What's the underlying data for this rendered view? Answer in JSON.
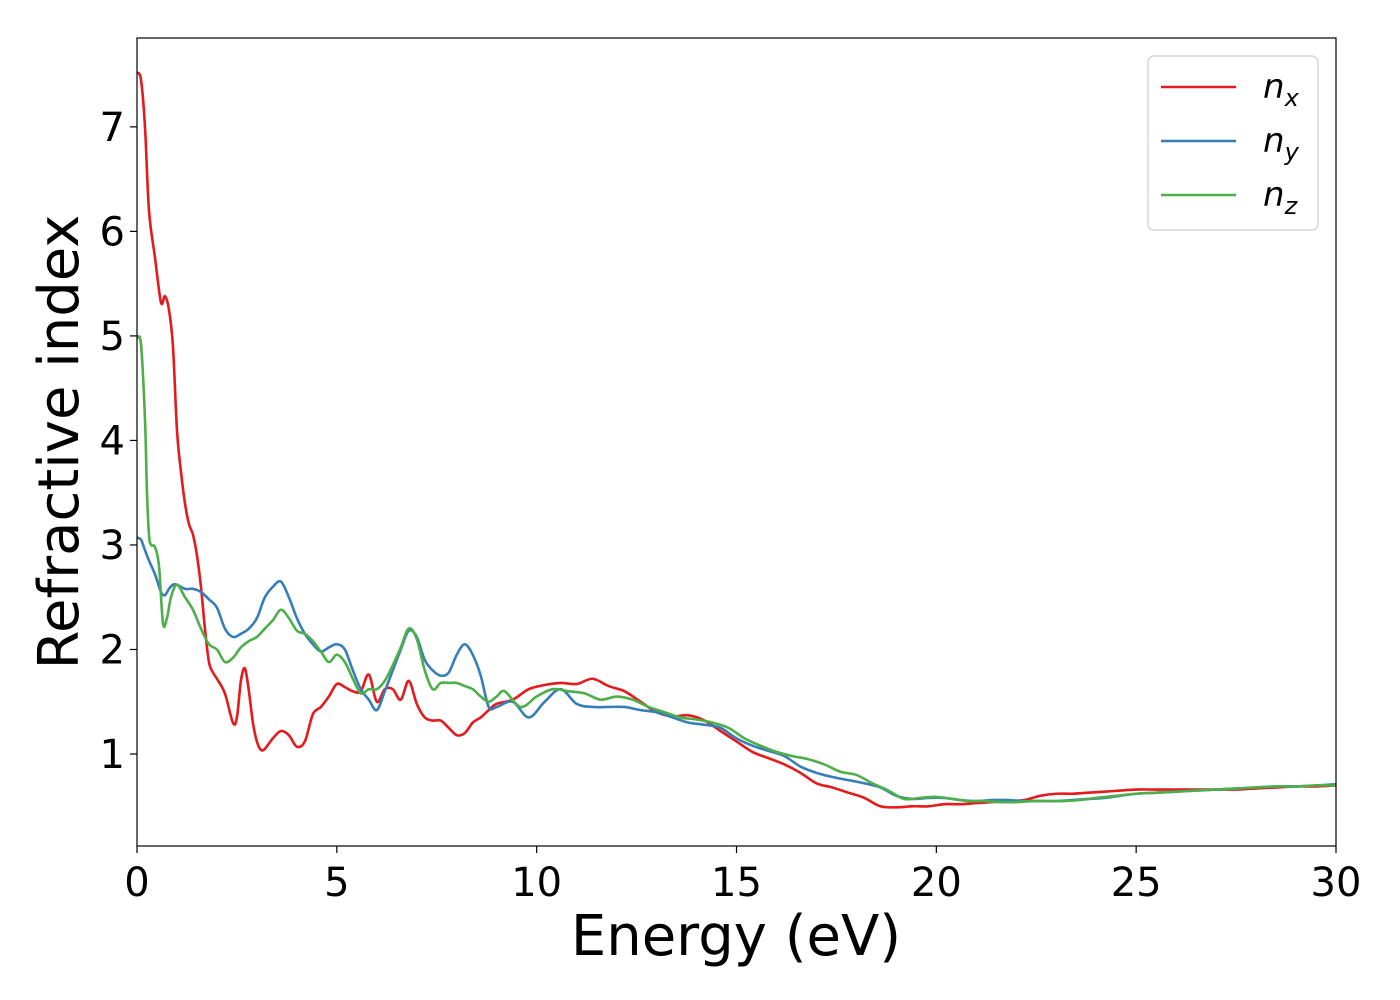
{
  "chart_data": {
    "type": "line",
    "title": "",
    "xlabel": "Energy (eV)",
    "ylabel": "Refractive index",
    "xlim": [
      0,
      30
    ],
    "ylim": [
      0.12,
      7.85
    ],
    "xticks": [
      0,
      5,
      10,
      15,
      20,
      25,
      30
    ],
    "yticks": [
      1,
      2,
      3,
      4,
      5,
      6,
      7
    ],
    "grid": false,
    "legend_position": "top-right",
    "series": [
      {
        "name": "n_x",
        "label_main": "n",
        "label_sub": "x",
        "color": "#e41a1c",
        "x": [
          0,
          0.1,
          0.2,
          0.3,
          0.45,
          0.6,
          0.7,
          0.8,
          0.9,
          1.0,
          1.1,
          1.2,
          1.3,
          1.4,
          1.5,
          1.6,
          1.7,
          1.8,
          1.9,
          2.0,
          2.2,
          2.4,
          2.5,
          2.6,
          2.7,
          2.8,
          2.9,
          3.0,
          3.1,
          3.2,
          3.4,
          3.6,
          3.8,
          4.0,
          4.2,
          4.4,
          4.6,
          4.8,
          5.0,
          5.2,
          5.4,
          5.6,
          5.8,
          6.0,
          6.2,
          6.4,
          6.6,
          6.8,
          7.0,
          7.2,
          7.4,
          7.6,
          7.8,
          8.0,
          8.2,
          8.4,
          8.6,
          8.8,
          9.0,
          9.4,
          9.8,
          10.2,
          10.6,
          11.0,
          11.4,
          11.8,
          12.2,
          12.6,
          13.0,
          13.4,
          13.8,
          14.2,
          14.6,
          15.0,
          15.4,
          15.8,
          16.2,
          16.6,
          17.0,
          17.4,
          17.8,
          18.2,
          18.6,
          19.0,
          19.4,
          19.8,
          20.2,
          20.6,
          21.0,
          21.4,
          21.8,
          22.2,
          22.6,
          23.0,
          23.4,
          23.8,
          24.2,
          24.6,
          25.0,
          25.5,
          26.0,
          26.5,
          27.0,
          27.5,
          28.0,
          28.5,
          29.0,
          29.5,
          30.0
        ],
        "values": [
          7.52,
          7.45,
          7.0,
          6.2,
          5.75,
          5.32,
          5.38,
          5.25,
          4.9,
          4.1,
          3.7,
          3.4,
          3.2,
          3.1,
          2.9,
          2.6,
          2.2,
          1.88,
          1.78,
          1.72,
          1.58,
          1.3,
          1.35,
          1.7,
          1.82,
          1.6,
          1.3,
          1.12,
          1.04,
          1.05,
          1.15,
          1.22,
          1.18,
          1.07,
          1.12,
          1.38,
          1.45,
          1.55,
          1.67,
          1.64,
          1.6,
          1.6,
          1.76,
          1.5,
          1.62,
          1.62,
          1.52,
          1.7,
          1.48,
          1.35,
          1.32,
          1.32,
          1.25,
          1.18,
          1.2,
          1.3,
          1.35,
          1.42,
          1.48,
          1.52,
          1.62,
          1.66,
          1.68,
          1.67,
          1.72,
          1.65,
          1.6,
          1.5,
          1.4,
          1.36,
          1.37,
          1.32,
          1.22,
          1.12,
          1.02,
          0.96,
          0.9,
          0.82,
          0.72,
          0.68,
          0.63,
          0.58,
          0.5,
          0.49,
          0.5,
          0.5,
          0.52,
          0.52,
          0.53,
          0.54,
          0.55,
          0.56,
          0.6,
          0.62,
          0.62,
          0.63,
          0.64,
          0.65,
          0.66,
          0.66,
          0.66,
          0.66,
          0.66,
          0.66,
          0.67,
          0.68,
          0.69,
          0.69,
          0.7
        ]
      },
      {
        "name": "n_y",
        "label_main": "n",
        "label_sub": "y",
        "color": "#377eb8",
        "x": [
          0,
          0.1,
          0.2,
          0.3,
          0.45,
          0.6,
          0.7,
          0.8,
          0.9,
          1.0,
          1.2,
          1.4,
          1.6,
          1.8,
          2.0,
          2.2,
          2.4,
          2.6,
          2.8,
          3.0,
          3.2,
          3.4,
          3.6,
          3.8,
          4.0,
          4.2,
          4.4,
          4.6,
          4.8,
          5.0,
          5.2,
          5.4,
          5.6,
          5.8,
          6.0,
          6.2,
          6.4,
          6.6,
          6.8,
          7.0,
          7.2,
          7.4,
          7.6,
          7.8,
          8.0,
          8.2,
          8.4,
          8.6,
          8.8,
          9.0,
          9.4,
          9.8,
          10.2,
          10.6,
          11.0,
          11.4,
          11.8,
          12.2,
          12.6,
          13.0,
          13.4,
          13.8,
          14.2,
          14.6,
          15.0,
          15.4,
          15.8,
          16.2,
          16.6,
          17.0,
          17.4,
          17.8,
          18.2,
          18.6,
          19.0,
          19.4,
          19.8,
          20.2,
          20.6,
          21.0,
          21.4,
          21.8,
          22.2,
          22.6,
          23.0,
          23.4,
          23.8,
          24.2,
          24.6,
          25.0,
          25.5,
          26.0,
          26.5,
          27.0,
          27.5,
          28.0,
          28.5,
          29.0,
          29.5,
          30.0
        ],
        "values": [
          3.07,
          3.05,
          2.95,
          2.85,
          2.72,
          2.55,
          2.52,
          2.58,
          2.62,
          2.62,
          2.58,
          2.58,
          2.55,
          2.48,
          2.4,
          2.2,
          2.12,
          2.15,
          2.2,
          2.3,
          2.5,
          2.6,
          2.65,
          2.5,
          2.3,
          2.15,
          2.05,
          1.98,
          2.02,
          2.05,
          2.0,
          1.8,
          1.62,
          1.52,
          1.42,
          1.6,
          1.8,
          2.0,
          2.18,
          2.12,
          1.9,
          1.8,
          1.75,
          1.78,
          1.95,
          2.05,
          1.95,
          1.75,
          1.45,
          1.45,
          1.5,
          1.35,
          1.5,
          1.62,
          1.48,
          1.45,
          1.45,
          1.45,
          1.42,
          1.4,
          1.35,
          1.3,
          1.28,
          1.25,
          1.15,
          1.08,
          1.03,
          0.98,
          0.88,
          0.82,
          0.78,
          0.75,
          0.72,
          0.68,
          0.6,
          0.57,
          0.58,
          0.58,
          0.56,
          0.55,
          0.56,
          0.56,
          0.55,
          0.55,
          0.55,
          0.56,
          0.57,
          0.58,
          0.6,
          0.62,
          0.63,
          0.64,
          0.65,
          0.66,
          0.67,
          0.68,
          0.69,
          0.69,
          0.7,
          0.71
        ]
      },
      {
        "name": "n_z",
        "label_main": "n",
        "label_sub": "z",
        "color": "#4daf4a",
        "x": [
          0,
          0.1,
          0.2,
          0.25,
          0.3,
          0.35,
          0.45,
          0.55,
          0.65,
          0.75,
          0.85,
          1.0,
          1.2,
          1.4,
          1.6,
          1.8,
          2.0,
          2.2,
          2.4,
          2.6,
          2.8,
          3.0,
          3.2,
          3.4,
          3.6,
          3.8,
          4.0,
          4.2,
          4.4,
          4.6,
          4.8,
          5.0,
          5.2,
          5.4,
          5.6,
          5.8,
          6.0,
          6.2,
          6.4,
          6.6,
          6.8,
          7.0,
          7.2,
          7.4,
          7.6,
          7.8,
          8.0,
          8.2,
          8.4,
          8.6,
          8.8,
          9.0,
          9.2,
          9.6,
          10.0,
          10.4,
          10.8,
          11.2,
          11.6,
          12.0,
          12.4,
          12.8,
          13.2,
          13.6,
          14.0,
          14.4,
          14.8,
          15.2,
          15.6,
          16.0,
          16.4,
          16.8,
          17.2,
          17.6,
          18.0,
          18.4,
          18.8,
          19.2,
          19.6,
          20.0,
          20.4,
          20.8,
          21.2,
          21.6,
          22.0,
          22.4,
          22.8,
          23.2,
          23.6,
          24.0,
          24.5,
          25.0,
          25.5,
          26.0,
          26.5,
          27.0,
          27.5,
          28.0,
          28.5,
          29.0,
          29.5,
          30.0
        ],
        "values": [
          4.98,
          4.92,
          4.2,
          3.5,
          3.1,
          3.0,
          2.98,
          2.8,
          2.25,
          2.3,
          2.5,
          2.62,
          2.5,
          2.38,
          2.2,
          2.05,
          2.0,
          1.88,
          1.92,
          2.02,
          2.08,
          2.12,
          2.2,
          2.28,
          2.38,
          2.3,
          2.18,
          2.15,
          2.08,
          1.98,
          1.88,
          1.95,
          1.88,
          1.72,
          1.58,
          1.62,
          1.62,
          1.7,
          1.85,
          2.02,
          2.2,
          2.1,
          1.8,
          1.62,
          1.68,
          1.68,
          1.68,
          1.65,
          1.62,
          1.55,
          1.5,
          1.55,
          1.6,
          1.45,
          1.55,
          1.62,
          1.6,
          1.58,
          1.52,
          1.55,
          1.52,
          1.45,
          1.4,
          1.35,
          1.33,
          1.3,
          1.25,
          1.15,
          1.08,
          1.02,
          0.98,
          0.95,
          0.9,
          0.83,
          0.8,
          0.72,
          0.65,
          0.57,
          0.58,
          0.59,
          0.57,
          0.55,
          0.55,
          0.54,
          0.54,
          0.55,
          0.55,
          0.55,
          0.56,
          0.58,
          0.6,
          0.62,
          0.63,
          0.64,
          0.65,
          0.66,
          0.67,
          0.68,
          0.69,
          0.69,
          0.7,
          0.7
        ]
      }
    ]
  }
}
